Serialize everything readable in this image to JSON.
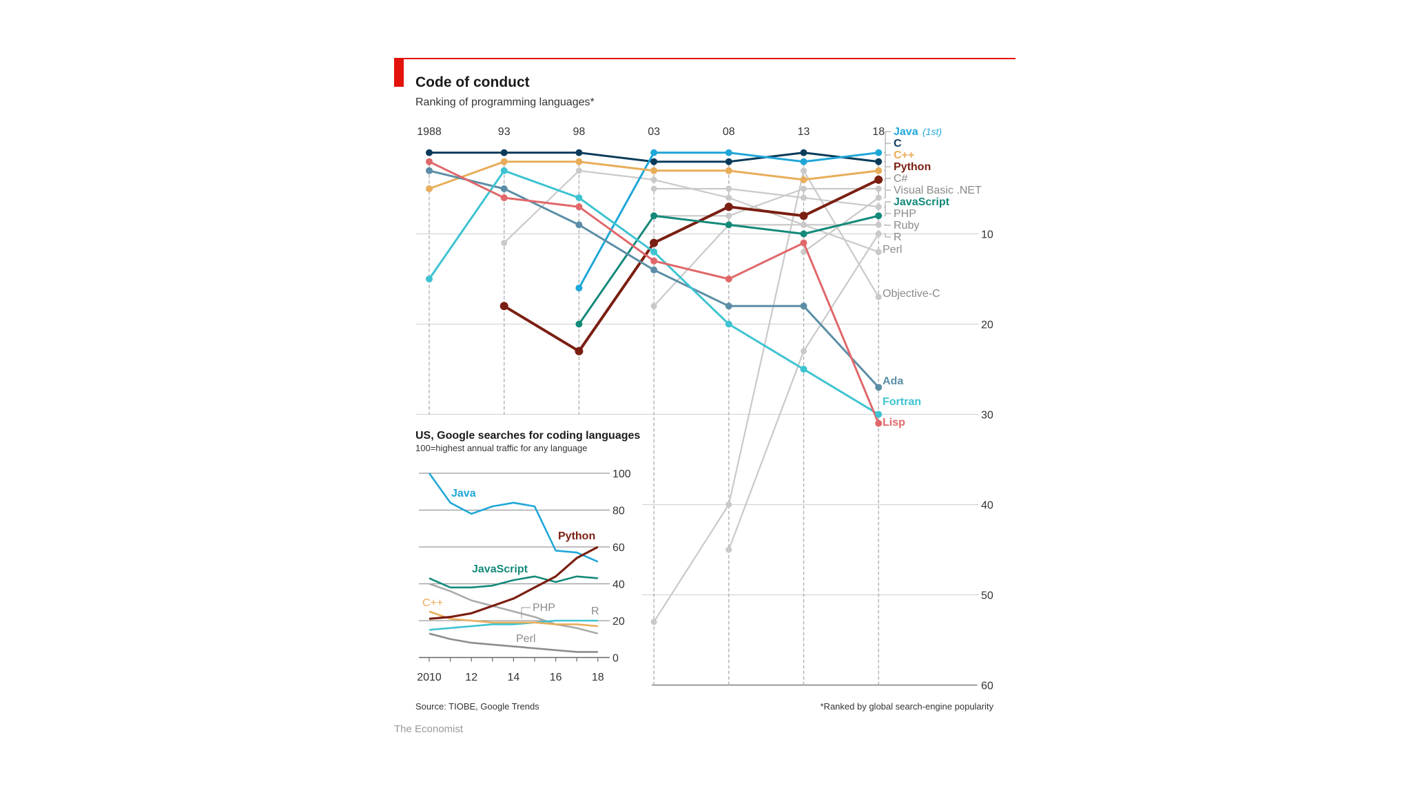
{
  "header": {
    "title": "Code of conduct",
    "subtitle": "Ranking of programming languages*"
  },
  "colors": {
    "accent": "#e3120b",
    "Java": "#1fa7d8",
    "C": "#0c3b5a",
    "C++": "#e8ad5a",
    "Python": "#7a1f12",
    "JavaScript": "#13897a",
    "Ada": "#5b8ea6",
    "Fortran": "#3ec3d1",
    "Lisp": "#e0676a",
    "grey": "#c9c9c9",
    "greyLabel": "#8a8a8a",
    "axis": "#9a9a9a",
    "Perl": "#8c8c8c",
    "PHP": "#aaaaaa"
  },
  "chart_data": [
    {
      "type": "line",
      "title": "Code of conduct",
      "subtitle": "Ranking of programming languages*",
      "x": [
        1988,
        1993,
        1998,
        2003,
        2008,
        2013,
        2018
      ],
      "x_tick_labels": [
        "1988",
        "93",
        "98",
        "03",
        "08",
        "13",
        "18"
      ],
      "y_axis": "rank (1 = top, inverted)",
      "ylim": [
        1,
        60
      ],
      "y_ticks": [
        10,
        20,
        30,
        40,
        50,
        60
      ],
      "series": [
        {
          "name": "C",
          "label": "C",
          "highlight": true,
          "values": [
            1,
            1,
            1,
            2,
            2,
            1,
            2
          ]
        },
        {
          "name": "Java",
          "label": "Java",
          "label_suffix": "(1st)",
          "highlight": true,
          "values": [
            null,
            null,
            16,
            1,
            1,
            2,
            1
          ]
        },
        {
          "name": "C++",
          "label": "C++",
          "highlight": true,
          "values": [
            5,
            2,
            2,
            3,
            3,
            4,
            3
          ]
        },
        {
          "name": "Python",
          "label": "Python",
          "highlight": true,
          "values": [
            null,
            18,
            23,
            11,
            7,
            8,
            4
          ]
        },
        {
          "name": "JavaScript",
          "label": "JavaScript",
          "highlight": true,
          "values": [
            null,
            null,
            20,
            8,
            9,
            10,
            8
          ]
        },
        {
          "name": "Ada",
          "label": "Ada",
          "highlight": true,
          "values": [
            3,
            5,
            9,
            14,
            18,
            18,
            27
          ]
        },
        {
          "name": "Fortran",
          "label": "Fortran",
          "highlight": true,
          "values": [
            15,
            3,
            6,
            12,
            20,
            25,
            30
          ]
        },
        {
          "name": "Lisp",
          "label": "Lisp",
          "highlight": true,
          "values": [
            2,
            6,
            7,
            13,
            15,
            11,
            31
          ]
        },
        {
          "name": "C#",
          "label": "C#",
          "highlight": false,
          "values": [
            null,
            null,
            null,
            8,
            8,
            5,
            5
          ]
        },
        {
          "name": "Visual Basic .NET",
          "label": "Visual Basic .NET",
          "highlight": false,
          "values": [
            null,
            null,
            null,
            null,
            null,
            12,
            6
          ]
        },
        {
          "name": "PHP",
          "label": "PHP",
          "highlight": false,
          "values": [
            null,
            null,
            null,
            5,
            5,
            6,
            7
          ]
        },
        {
          "name": "Ruby",
          "label": "Ruby",
          "highlight": false,
          "values": [
            null,
            null,
            null,
            18,
            9,
            9,
            9
          ]
        },
        {
          "name": "R",
          "label": "R",
          "highlight": false,
          "values": [
            null,
            null,
            null,
            null,
            45,
            23,
            10
          ]
        },
        {
          "name": "Perl",
          "label": "Perl",
          "highlight": false,
          "values": [
            null,
            11,
            3,
            4,
            6,
            9,
            12
          ]
        },
        {
          "name": "Objective-C",
          "label": "Objective-C",
          "highlight": false,
          "values": [
            null,
            null,
            null,
            53,
            40,
            3,
            17
          ]
        }
      ]
    },
    {
      "type": "line",
      "title": "US, Google searches for coding languages",
      "subtitle": "100=highest annual traffic for any language",
      "x": [
        2010,
        2011,
        2012,
        2013,
        2014,
        2015,
        2016,
        2017,
        2018
      ],
      "x_tick_labels": [
        "2010",
        "12",
        "14",
        "16",
        "18"
      ],
      "ylim": [
        0,
        100
      ],
      "y_ticks": [
        0,
        20,
        40,
        60,
        80,
        100
      ],
      "series": [
        {
          "name": "Java",
          "label": "Java",
          "values": [
            100,
            84,
            78,
            82,
            84,
            82,
            58,
            57,
            52
          ]
        },
        {
          "name": "Python",
          "label": "Python",
          "values": [
            21,
            22,
            24,
            28,
            32,
            38,
            44,
            54,
            60
          ]
        },
        {
          "name": "JavaScript",
          "label": "JavaScript",
          "values": [
            43,
            38,
            38,
            39,
            42,
            44,
            41,
            44,
            43
          ]
        },
        {
          "name": "C++",
          "label": "C++",
          "values": [
            25,
            21,
            20,
            19,
            19,
            19,
            18,
            18,
            17
          ]
        },
        {
          "name": "PHP",
          "label": "PHP",
          "values": [
            40,
            36,
            31,
            28,
            25,
            22,
            18,
            16,
            13
          ]
        },
        {
          "name": "R",
          "label": "R",
          "values": [
            15,
            16,
            17,
            18,
            18,
            19,
            20,
            20,
            20
          ]
        },
        {
          "name": "Perl",
          "label": "Perl",
          "values": [
            13,
            10,
            8,
            7,
            6,
            5,
            4,
            3,
            3
          ]
        }
      ]
    }
  ],
  "footer": {
    "source": "Source: TIOBE, Google Trends",
    "footnote": "*Ranked by global search-engine popularity",
    "brand": "The Economist"
  }
}
